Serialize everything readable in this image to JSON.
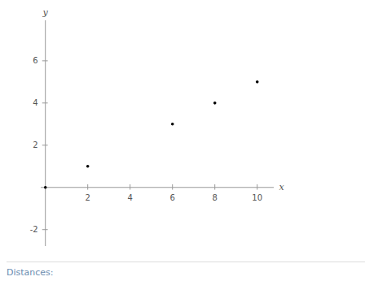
{
  "chart_data": {
    "type": "scatter",
    "xlabel": "x",
    "ylabel": "y",
    "x": [
      0,
      2,
      6,
      8,
      10
    ],
    "values": [
      0,
      1,
      3,
      4,
      5
    ],
    "color": "#000000",
    "xlim": [
      -0.2,
      10.8
    ],
    "xticks": [
      2,
      4,
      6,
      8,
      10
    ],
    "ylim": [
      -2.8,
      7.9
    ],
    "yticks": [
      -2,
      2,
      4,
      6
    ],
    "grid": false,
    "caption": "Distances:"
  }
}
